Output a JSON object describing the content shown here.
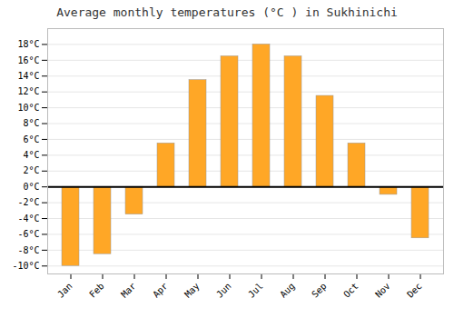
{
  "chart_data": {
    "type": "bar",
    "title": "Average monthly temperatures (°C ) in Sukhinichi",
    "categories": [
      "Jan",
      "Feb",
      "Mar",
      "Apr",
      "May",
      "Jun",
      "Jul",
      "Aug",
      "Sep",
      "Oct",
      "Nov",
      "Dec"
    ],
    "values": [
      -10,
      -8.5,
      -3.5,
      5.5,
      13.5,
      16.5,
      18,
      16.5,
      11.5,
      5.5,
      -1,
      -6.5
    ],
    "color": "#FFA726",
    "ylim": [
      -11,
      20
    ],
    "yticks": [
      {
        "value": -10,
        "label": "-10°C"
      },
      {
        "value": -8,
        "label": "-8°C"
      },
      {
        "value": -6,
        "label": "-6°C"
      },
      {
        "value": -4,
        "label": "-4°C"
      },
      {
        "value": -2,
        "label": "-2°C"
      },
      {
        "value": 0,
        "label": "0°C"
      },
      {
        "value": 2,
        "label": "2°C"
      },
      {
        "value": 4,
        "label": "4°C"
      },
      {
        "value": 6,
        "label": "6°C"
      },
      {
        "value": 8,
        "label": "8°C"
      },
      {
        "value": 10,
        "label": "10°C"
      },
      {
        "value": 12,
        "label": "12°C"
      },
      {
        "value": 14,
        "label": "14°C"
      },
      {
        "value": 16,
        "label": "16°C"
      },
      {
        "value": 18,
        "label": "18°C"
      }
    ],
    "grid": true
  }
}
